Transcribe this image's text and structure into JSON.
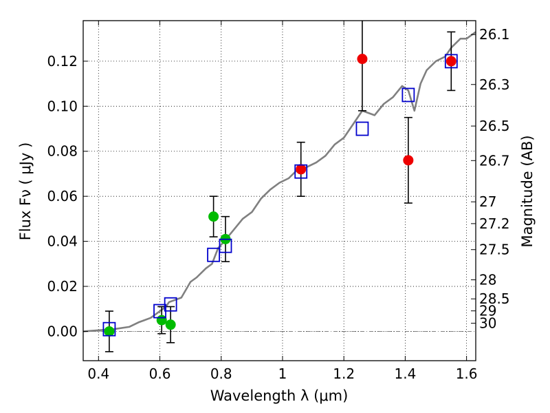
{
  "chart_data": {
    "type": "scatter",
    "xlabel": "Wavelength  λ (μm)",
    "ylabel": "Flux  Fν  ( μJy )",
    "y2label": "Magnitude (AB)",
    "xlim": [
      0.35,
      1.63
    ],
    "ylim": [
      -0.013,
      0.138
    ],
    "x_ticks": [
      0.4,
      0.6,
      0.8,
      1.0,
      1.2,
      1.4,
      1.6
    ],
    "x_tick_labels": [
      "0.4",
      "0.6",
      "0.8",
      "1",
      "1.2",
      "1.4",
      "1.6"
    ],
    "y_ticks": [
      0.0,
      0.02,
      0.04,
      0.06,
      0.08,
      0.1,
      0.12
    ],
    "y_tick_labels": [
      "0.00",
      "0.02",
      "0.04",
      "0.06",
      "0.08",
      "0.10",
      "0.12"
    ],
    "magnitude_ticks": [
      "26.1",
      "26.3",
      "26.5",
      "26.7",
      "27",
      "27.2",
      "27.5",
      "28",
      "28.5",
      "29",
      "30"
    ],
    "grid": true,
    "colors": {
      "model": "#808080",
      "hst_points": "#00bb00",
      "ir_points": "#ee0000",
      "model_boxes": "#0000cc",
      "errorbars": "#000000",
      "zero_line": "#808080"
    },
    "series": [
      {
        "name": "model spectrum",
        "kind": "line",
        "x": [
          0.35,
          0.4,
          0.45,
          0.5,
          0.53,
          0.55,
          0.57,
          0.59,
          0.61,
          0.62,
          0.63,
          0.65,
          0.67,
          0.7,
          0.72,
          0.75,
          0.77,
          0.79,
          0.81,
          0.84,
          0.87,
          0.9,
          0.93,
          0.96,
          0.99,
          1.02,
          1.05,
          1.08,
          1.11,
          1.14,
          1.17,
          1.2,
          1.23,
          1.26,
          1.28,
          1.3,
          1.33,
          1.36,
          1.39,
          1.41,
          1.43,
          1.45,
          1.47,
          1.5,
          1.53,
          1.55,
          1.58,
          1.6,
          1.63
        ],
        "y": [
          0.0,
          0.0005,
          0.001,
          0.002,
          0.004,
          0.005,
          0.006,
          0.008,
          0.01,
          0.011,
          0.013,
          0.014,
          0.015,
          0.022,
          0.024,
          0.028,
          0.03,
          0.037,
          0.04,
          0.045,
          0.05,
          0.053,
          0.059,
          0.063,
          0.066,
          0.068,
          0.072,
          0.073,
          0.075,
          0.078,
          0.083,
          0.086,
          0.092,
          0.098,
          0.097,
          0.096,
          0.101,
          0.104,
          0.109,
          0.107,
          0.098,
          0.11,
          0.116,
          0.12,
          0.122,
          0.126,
          0.13,
          0.13,
          0.133
        ]
      },
      {
        "name": "optical photometry",
        "kind": "points",
        "x": [
          0.435,
          0.606,
          0.635,
          0.775,
          0.814
        ],
        "y": [
          0.0,
          0.005,
          0.003,
          0.051,
          0.041
        ],
        "yerr": [
          0.009,
          0.006,
          0.008,
          0.009,
          0.01
        ]
      },
      {
        "name": "near-IR photometry",
        "kind": "points",
        "x": [
          1.06,
          1.26,
          1.41,
          1.55
        ],
        "y": [
          0.072,
          0.121,
          0.076,
          0.12
        ],
        "yerr": [
          0.012,
          0.023,
          0.019,
          0.013
        ]
      },
      {
        "name": "model band flux",
        "kind": "boxes",
        "x": [
          0.435,
          0.6,
          0.635,
          0.775,
          0.814,
          1.06,
          1.26,
          1.41,
          1.55
        ],
        "y": [
          0.001,
          0.009,
          0.012,
          0.034,
          0.038,
          0.071,
          0.09,
          0.105,
          0.12
        ]
      }
    ]
  }
}
